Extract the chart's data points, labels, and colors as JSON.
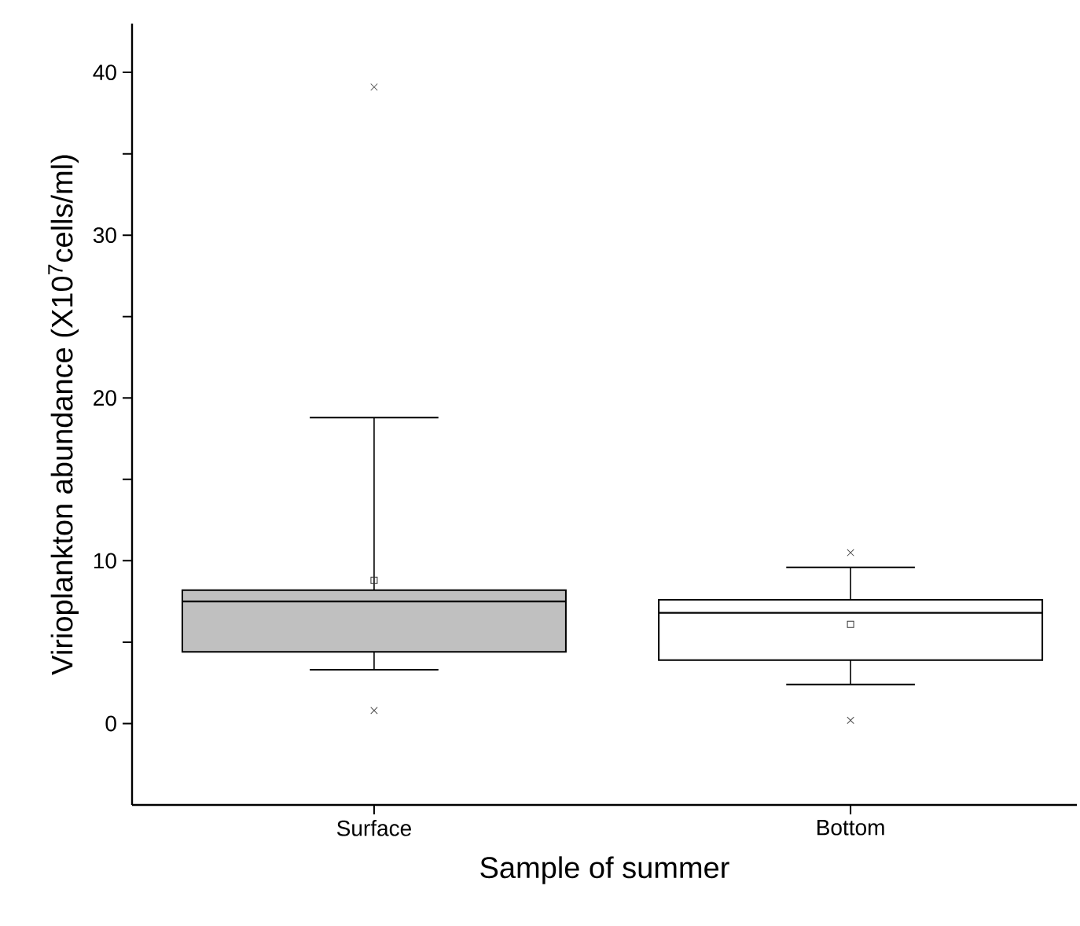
{
  "chart_data": {
    "type": "box",
    "xlabel": "Sample of summer",
    "ylabel": "Virioplankton abundance (X10$^{7}$cells/ml)",
    "categories": [
      "Surface",
      "Bottom"
    ],
    "colors": [
      "#c0c0c0",
      "#ffffff"
    ],
    "boxes": [
      {
        "low": 3.3,
        "q1": 4.4,
        "median": 7.5,
        "q3": 8.2,
        "high": 18.8,
        "mean": 8.8,
        "outliers": [
          39.1,
          0.8
        ]
      },
      {
        "low": 2.4,
        "q1": 3.9,
        "median": 6.8,
        "q3": 7.6,
        "high": 9.6,
        "mean": 6.1,
        "outliers": [
          10.5,
          0.2
        ]
      }
    ],
    "ylim": [
      -5,
      43
    ],
    "yticks": [
      0,
      {
        "value": 5,
        "label": null
      },
      10,
      {
        "value": 15,
        "label": null
      },
      20,
      {
        "value": 25,
        "label": null
      },
      30,
      {
        "value": 35,
        "label": null
      },
      40
    ]
  }
}
